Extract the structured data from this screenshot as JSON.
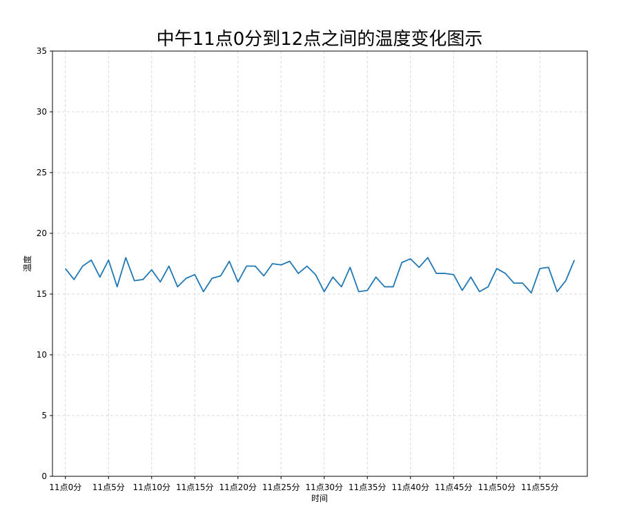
{
  "chart_data": {
    "type": "line",
    "title": "中午11点0分到12点之间的温度变化图示",
    "xlabel": "时间",
    "ylabel": "温度",
    "ylim": [
      0,
      35
    ],
    "yticks": [
      0,
      5,
      10,
      15,
      20,
      25,
      30,
      35
    ],
    "grid": true,
    "grid_style": "dashed",
    "line_color": "#1f77b4",
    "x": [
      0,
      1,
      2,
      3,
      4,
      5,
      6,
      7,
      8,
      9,
      10,
      11,
      12,
      13,
      14,
      15,
      16,
      17,
      18,
      19,
      20,
      21,
      22,
      23,
      24,
      25,
      26,
      27,
      28,
      29,
      30,
      31,
      32,
      33,
      34,
      35,
      36,
      37,
      38,
      39,
      40,
      41,
      42,
      43,
      44,
      45,
      46,
      47,
      48,
      49,
      50,
      51,
      52,
      53,
      54,
      55,
      56,
      57,
      58,
      59
    ],
    "xticks": [
      0,
      5,
      10,
      15,
      20,
      25,
      30,
      35,
      40,
      45,
      50,
      55
    ],
    "xtick_labels": [
      "11点0分",
      "11点5分",
      "11点10分",
      "11点15分",
      "11点20分",
      "11点25分",
      "11点30分",
      "11点35分",
      "11点40分",
      "11点45分",
      "11点50分",
      "11点55分"
    ],
    "series": [
      {
        "values": [
          17.1,
          16.2,
          17.3,
          17.8,
          16.4,
          17.8,
          15.6,
          18.0,
          16.1,
          16.2,
          17.0,
          16.0,
          17.3,
          15.6,
          16.3,
          16.6,
          15.2,
          16.3,
          16.5,
          17.7,
          16.0,
          17.3,
          17.3,
          16.5,
          17.5,
          17.4,
          17.7,
          16.7,
          17.3,
          16.6,
          15.2,
          16.4,
          15.6,
          17.2,
          15.2,
          15.3,
          16.4,
          15.6,
          15.6,
          17.6,
          17.9,
          17.2,
          18.0,
          16.7,
          16.7,
          16.6,
          15.3,
          16.4,
          15.2,
          15.6,
          17.1,
          16.7,
          15.9,
          15.9,
          15.1,
          17.1,
          17.2,
          15.2,
          16.1,
          17.8
        ]
      }
    ]
  }
}
